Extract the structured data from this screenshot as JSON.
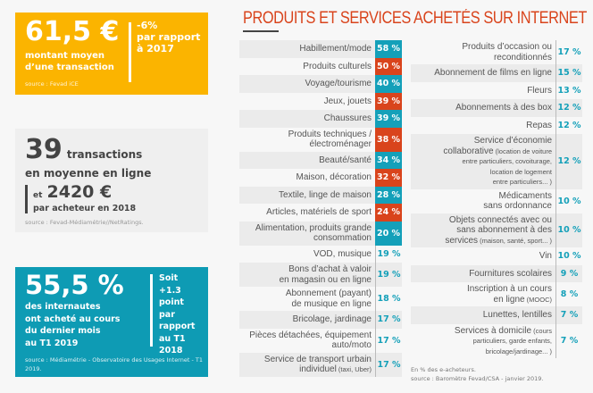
{
  "stats": {
    "yellow": {
      "value": "61,5 €",
      "caption": [
        "montant moyen",
        "d’une transaction"
      ],
      "side": [
        "-6%",
        "par rapport",
        "à 2017"
      ],
      "source": "source : Fevad iCE"
    },
    "grey": {
      "value": "39",
      "unit": "transactions",
      "line2": "en moyenne en ligne",
      "prefix": "et",
      "amount": "2420 €",
      "caption": "par acheteur en 2018",
      "source": "source : Fevad-Médiamétrie//NetRatings."
    },
    "teal": {
      "value": "55,5 %",
      "caption": [
        "des internautes",
        "ont acheté au cours",
        "du dernier mois",
        "au T1 2019"
      ],
      "side": [
        "Soit",
        "+1.3 point",
        "par",
        "rapport",
        "au T1",
        "2018"
      ],
      "source": "source : Médiamétrie - Observatoire des Usages Internet - T1 2019."
    }
  },
  "chart_data": {
    "type": "table",
    "title": "PRODUITS ET SERVICES ACHETÉS SUR INTERNET",
    "colors": {
      "teal": "#14a0b9",
      "red": "#d9441c",
      "stripe": "#ebebeb"
    },
    "left": [
      {
        "label": "Habillement/mode",
        "value": "58 %",
        "hl": "teal"
      },
      {
        "label": "Produits culturels",
        "value": "50 %",
        "hl": "red"
      },
      {
        "label": "Voyage/tourisme",
        "value": "40 %",
        "hl": "teal"
      },
      {
        "label": "Jeux, jouets",
        "value": "39 %",
        "hl": "red"
      },
      {
        "label": "Chaussures",
        "value": "39 %",
        "hl": "teal"
      },
      {
        "label": "Produits techniques /|électroménager",
        "value": "38 %",
        "hl": "red"
      },
      {
        "label": "Beauté/santé",
        "value": "34 %",
        "hl": "teal"
      },
      {
        "label": "Maison, décoration",
        "value": "32 %",
        "hl": "red"
      },
      {
        "label": "Textile, linge de maison",
        "value": "28 %",
        "hl": "teal"
      },
      {
        "label": "Articles, matériels de sport",
        "value": "24 %",
        "hl": "red"
      },
      {
        "label": "Alimentation, produits grande|consommation",
        "value": "20 %",
        "hl": "teal"
      },
      {
        "label": "VOD, musique",
        "value": "19 %"
      },
      {
        "label": "Bons d’achat à valoir|en magasin ou en ligne",
        "value": "19 %"
      },
      {
        "label": "Abonnement (payant)|de musique en ligne",
        "value": "18 %"
      },
      {
        "label": "Bricolage, jardinage",
        "value": "17 %"
      },
      {
        "label": "Pièces détachées, équipement|auto/moto",
        "value": "17 %"
      },
      {
        "label": "Service de transport urbain|individuel",
        "note": "(taxi, Uber)",
        "value": "17 %"
      }
    ],
    "right": [
      {
        "label": "Produits d’occasion ou|reconditionnés",
        "value": "17 %"
      },
      {
        "label": "Abonnement de films en ligne",
        "value": "15 %"
      },
      {
        "label": "Fleurs",
        "value": "13 %"
      },
      {
        "label": "Abonnements à des box",
        "value": "12 %"
      },
      {
        "label": "Repas",
        "value": "12 %"
      },
      {
        "label": "Service d’économie|collaborative",
        "note": "(location de voiture|entre particuliers, covoiturage,|location de logement|entre particuliers... )",
        "value": "12 %"
      },
      {
        "label": "Médicaments|sans ordonnance",
        "value": "10 %"
      },
      {
        "label": "Objets connectés avec ou|sans abonnement à des|services",
        "note": "(maison, santé, sport... )",
        "value": "10 %"
      },
      {
        "label": "Vin",
        "value": "10 %"
      },
      {
        "label": "Fournitures scolaires",
        "value": "9 %"
      },
      {
        "label": "Inscription à un cours|en ligne",
        "note": "(MOOC)",
        "value": "8 %"
      },
      {
        "label": "Lunettes, lentilles",
        "value": "7 %"
      },
      {
        "label": "Services à domicile",
        "note": "(cours|particuliers, garde enfants,|bricolage/jardinage... )",
        "value": "7 %"
      }
    ],
    "footnote": "En % des e-acheteurs.",
    "source": "source : Baromètre Fevad/CSA - janvier 2019."
  }
}
